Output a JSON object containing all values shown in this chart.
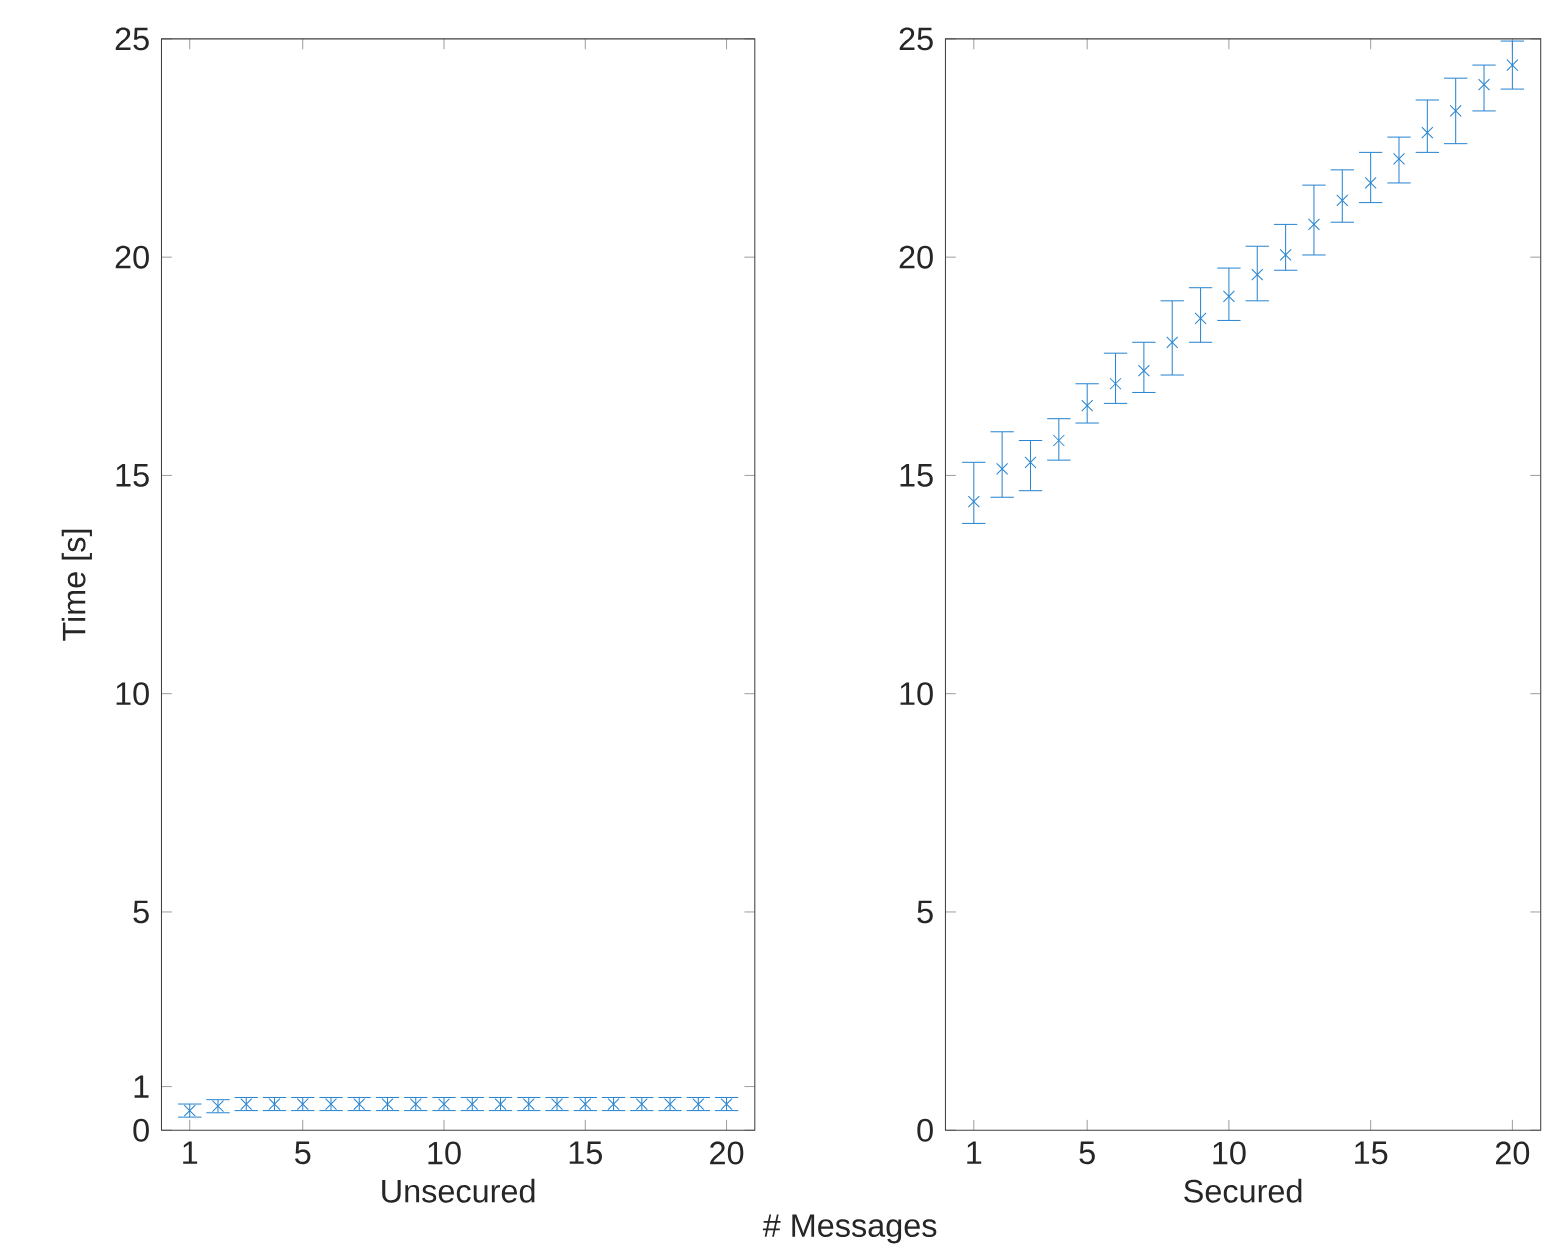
{
  "chart_data": [
    {
      "type": "scatter",
      "xlabel": "Unsecured",
      "ylabel": "Time [s]",
      "annotations": [
        "# Messages"
      ],
      "marker": "cross",
      "color": "#2b86d1",
      "x": [
        1,
        2,
        3,
        4,
        5,
        6,
        7,
        8,
        9,
        10,
        11,
        12,
        13,
        14,
        15,
        16,
        17,
        18,
        19,
        20
      ],
      "values": [
        0.45,
        0.55,
        0.6,
        0.6,
        0.6,
        0.6,
        0.6,
        0.6,
        0.6,
        0.6,
        0.6,
        0.6,
        0.6,
        0.6,
        0.6,
        0.6,
        0.6,
        0.6,
        0.6,
        0.6
      ],
      "errors": [
        0.15,
        0.15,
        0.15,
        0.15,
        0.15,
        0.15,
        0.15,
        0.15,
        0.15,
        0.15,
        0.15,
        0.15,
        0.15,
        0.15,
        0.15,
        0.15,
        0.15,
        0.15,
        0.15,
        0.15
      ],
      "xlim": [
        0,
        21
      ],
      "ylim": [
        0,
        25
      ],
      "xticks": [
        1,
        5,
        10,
        15,
        20
      ],
      "yticks": [
        0,
        1,
        5,
        10,
        15,
        20,
        25
      ]
    },
    {
      "type": "scatter",
      "xlabel": "Secured",
      "marker": "cross",
      "color": "#2b86d1",
      "x": [
        1,
        2,
        3,
        4,
        5,
        6,
        7,
        8,
        9,
        10,
        11,
        12,
        13,
        14,
        15,
        16,
        17,
        18,
        19,
        20
      ],
      "values": [
        14.4,
        15.15,
        15.3,
        15.8,
        16.6,
        17.1,
        17.4,
        18.05,
        18.6,
        19.1,
        19.6,
        20.05,
        20.75,
        21.3,
        21.7,
        22.25,
        22.85,
        23.35,
        23.95,
        24.4
      ],
      "errors": [
        [
          13.9,
          15.3
        ],
        [
          14.5,
          16.0
        ],
        [
          14.65,
          15.8
        ],
        [
          15.35,
          16.3
        ],
        [
          16.2,
          17.1
        ],
        [
          16.65,
          17.8
        ],
        [
          16.9,
          18.05
        ],
        [
          17.3,
          19.0
        ],
        [
          18.05,
          19.3
        ],
        [
          18.55,
          19.75
        ],
        [
          19.0,
          20.25
        ],
        [
          19.7,
          20.75
        ],
        [
          20.05,
          21.65
        ],
        [
          20.8,
          22.0
        ],
        [
          21.25,
          22.4
        ],
        [
          21.7,
          22.75
        ],
        [
          22.4,
          23.6
        ],
        [
          22.6,
          24.1
        ],
        [
          23.35,
          24.4
        ],
        [
          23.85,
          24.95
        ]
      ],
      "xlim": [
        0,
        21
      ],
      "ylim": [
        0,
        25
      ],
      "xticks": [
        1,
        5,
        10,
        15,
        20
      ],
      "yticks": [
        0,
        5,
        10,
        15,
        20,
        25
      ]
    }
  ]
}
